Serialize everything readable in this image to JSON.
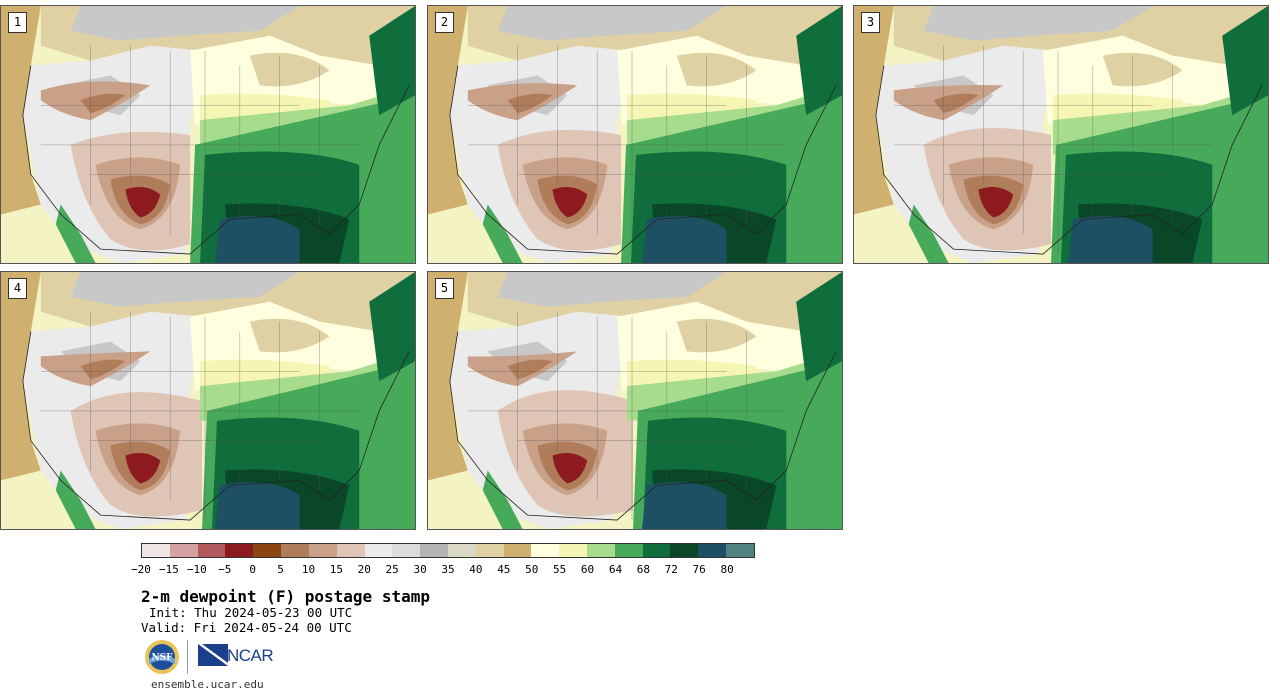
{
  "panels": [
    {
      "id": "p1",
      "label": "1"
    },
    {
      "id": "p2",
      "label": "2"
    },
    {
      "id": "p3",
      "label": "3"
    },
    {
      "id": "p4",
      "label": "4"
    },
    {
      "id": "p5",
      "label": "5"
    }
  ],
  "colorbar": {
    "colors": [
      "#f1e6e6",
      "#d4a0a2",
      "#b05a5e",
      "#8c1a1e",
      "#8b4513",
      "#b07d5a",
      "#c9a088",
      "#dfc5b6",
      "#ebebeb",
      "#dcdcdc",
      "#b4b4b4",
      "#d9d9c6",
      "#e0d1a4",
      "#cfb06e",
      "#ffffe0",
      "#f5f5b4",
      "#a6dc8c",
      "#46aa5a",
      "#0f6e3c",
      "#0a4628",
      "#1e5064",
      "#508282"
    ],
    "tick_labels": [
      "−20",
      "−15",
      "−10",
      "−5",
      "0",
      "5",
      "10",
      "15",
      "20",
      "25",
      "30",
      "35",
      "40",
      "45",
      "50",
      "55",
      "60",
      "64",
      "68",
      "72",
      "76",
      "80"
    ]
  },
  "title": "2-m dewpoint (F) postage stamp",
  "init": "Init: Thu 2024-05-23 00 UTC",
  "valid": "Valid: Fri 2024-05-24 00 UTC",
  "logos": {
    "nsf": "NSF",
    "ncar": "NCAR"
  },
  "footer_url": "ensemble.ucar.edu"
}
